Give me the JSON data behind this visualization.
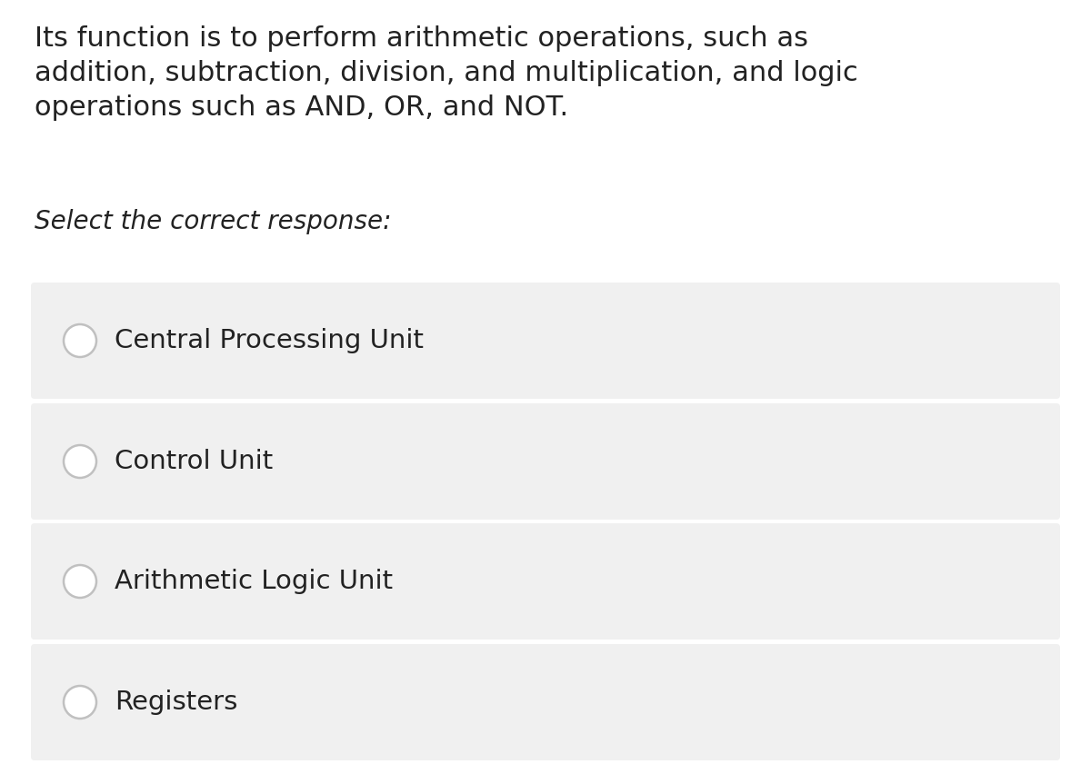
{
  "background_color": "#ffffff",
  "question_text_line1": "Its function is to perform arithmetic operations, such as",
  "question_text_line2": "addition, subtraction, division, and multiplication, and logic",
  "question_text_line3": "operations such as AND, OR, and NOT.",
  "instruction_text": "Select the correct response:",
  "options": [
    "Central Processing Unit",
    "Control Unit",
    "Arithmetic Logic Unit",
    "Registers"
  ],
  "option_bg": "#f0f0f0",
  "radio_color": "#c0c0c0",
  "text_color": "#222222",
  "question_fontsize": 22,
  "instruction_fontsize": 20,
  "option_fontsize": 21
}
